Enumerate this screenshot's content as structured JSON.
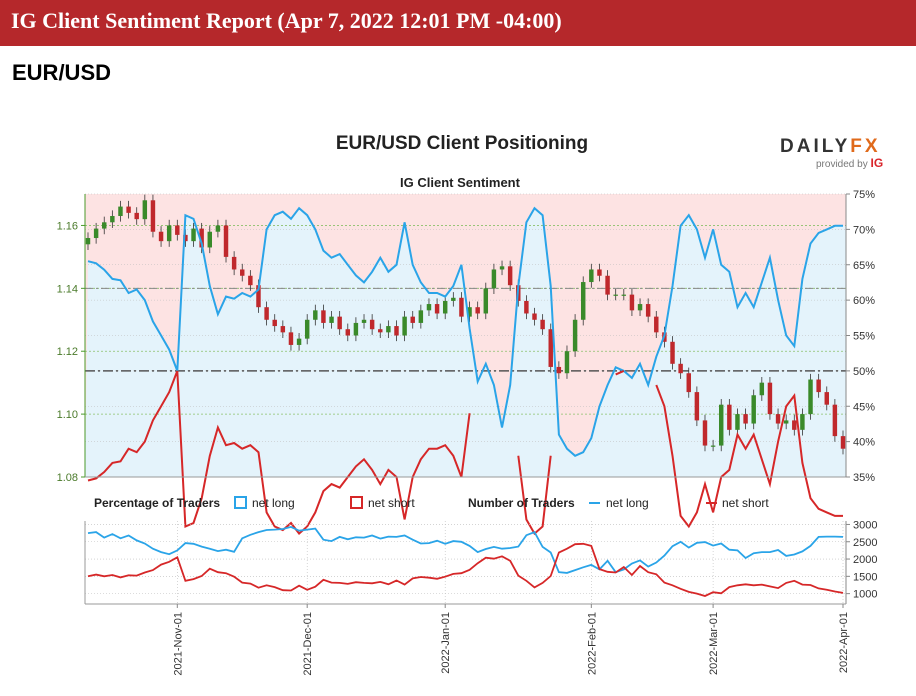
{
  "banner": {
    "title": "IG Client Sentiment Report (Apr 7, 2022 12:01 PM -04:00)"
  },
  "pair_label": "EUR/USD",
  "brand": {
    "name_main": "DAILY",
    "name_fx": "FX",
    "provided_by": "provided by",
    "provider": "IG"
  },
  "colors": {
    "long": "#2aa4e8",
    "short": "#d62728",
    "bull": "#3a8a2a",
    "bear": "#c0282c",
    "long_area": "#e4f3fb",
    "short_area": "#fde3e3"
  },
  "legend": {
    "pct_heading": "Percentage of Traders",
    "pct_long": "net long",
    "pct_short": "net short",
    "num_heading": "Number of Traders",
    "num_long": "net long",
    "num_short": "net short"
  },
  "chart_data": [
    {
      "type": "candlestick+line",
      "title": "EUR/USD Client Positioning",
      "subtitle": "IG Client Sentiment",
      "ylim_price": [
        1.08,
        1.17
      ],
      "yticks_price": [
        "1.08",
        "1.10",
        "1.12",
        "1.14",
        "1.16"
      ],
      "ylim_pct": [
        35,
        75
      ],
      "yticks_pct": [
        "35%",
        "40%",
        "45%",
        "50%",
        "55%",
        "60%",
        "65%",
        "70%",
        "75%"
      ],
      "price_close": [
        1.156,
        1.159,
        1.161,
        1.163,
        1.166,
        1.164,
        1.162,
        1.168,
        1.158,
        1.155,
        1.16,
        1.157,
        1.155,
        1.159,
        1.153,
        1.158,
        1.16,
        1.15,
        1.146,
        1.144,
        1.141,
        1.134,
        1.13,
        1.128,
        1.126,
        1.122,
        1.124,
        1.13,
        1.133,
        1.129,
        1.131,
        1.127,
        1.125,
        1.129,
        1.13,
        1.127,
        1.126,
        1.128,
        1.125,
        1.131,
        1.129,
        1.133,
        1.135,
        1.132,
        1.136,
        1.137,
        1.131,
        1.134,
        1.132,
        1.14,
        1.146,
        1.147,
        1.141,
        1.136,
        1.132,
        1.13,
        1.127,
        1.115,
        1.113,
        1.12,
        1.13,
        1.142,
        1.146,
        1.144,
        1.138,
        1.138,
        1.138,
        1.133,
        1.135,
        1.131,
        1.126,
        1.123,
        1.116,
        1.113,
        1.107,
        1.098,
        1.09,
        1.09,
        1.103,
        1.095,
        1.1,
        1.097,
        1.106,
        1.11,
        1.1,
        1.097,
        1.098,
        1.095,
        1.1,
        1.111,
        1.107,
        1.103,
        1.093,
        1.089
      ],
      "pct_long": [
        65.5,
        65.2,
        64.3,
        63.0,
        62.8,
        61.0,
        61.5,
        60.0,
        57.0,
        55.0,
        53.0,
        50.0,
        72.0,
        71.5,
        68.0,
        62.0,
        58.0,
        60.5,
        60.2,
        61.0,
        60.5,
        61.5,
        70.0,
        72.0,
        72.5,
        71.5,
        73.0,
        72.0,
        70.0,
        67.0,
        66.0,
        66.5,
        65.0,
        63.5,
        62.5,
        64.0,
        66.0,
        64.0,
        65.0,
        71.0,
        65.0,
        62.5,
        61.0,
        61.0,
        60.5,
        62.0,
        65.0,
        56.0,
        48.5,
        51.0,
        48.0,
        42.0,
        48.0,
        62.0,
        71.0,
        73.0,
        72.0,
        62.0,
        41.0,
        39.0,
        38.0,
        38.5,
        40.5,
        45.0,
        48.0,
        50.5,
        50.0,
        49.0,
        51.0,
        48.0,
        52.0,
        55.0,
        62.0,
        70.5,
        72.0,
        70.0,
        66.0,
        70.0,
        65.0,
        64.0,
        59.0,
        61.0,
        59.0,
        62.5,
        66.0,
        60.0,
        55.0,
        53.5,
        63.0,
        68.0,
        69.5,
        70.0,
        70.5,
        70.5
      ],
      "annotations": {
        "price_ref_dashed": 1.14,
        "pct_ref_dashed": 50
      }
    },
    {
      "type": "line",
      "ylim": [
        700,
        3100
      ],
      "yticks": [
        "1000",
        "1500",
        "2000",
        "2500",
        "3000"
      ],
      "x_tick_labels": [
        "2021-Nov-01",
        "2021-Dec-01",
        "2022-Jan-01",
        "2022-Feb-01",
        "2022-Mar-01",
        "2022-Apr-01"
      ],
      "net_long": [
        2750,
        2780,
        2620,
        2720,
        2600,
        2680,
        2540,
        2450,
        2300,
        2200,
        2140,
        2250,
        2460,
        2440,
        2360,
        2300,
        2230,
        2270,
        2210,
        2600,
        2700,
        2780,
        2840,
        2850,
        2870,
        2930,
        2820,
        2850,
        2880,
        2560,
        2520,
        2640,
        2570,
        2630,
        2620,
        2680,
        2590,
        2650,
        2640,
        2680,
        2560,
        2450,
        2460,
        2530,
        2440,
        2520,
        2500,
        2380,
        2200,
        2290,
        2350,
        2300,
        2320,
        2360,
        2690,
        2780,
        2350,
        2190,
        1620,
        1600,
        1680,
        1760,
        1830,
        1700,
        1950,
        1620,
        1700,
        1870,
        1960,
        1780,
        1900,
        2100,
        2370,
        2500,
        2330,
        2470,
        2490,
        2390,
        2450,
        2270,
        2250,
        2030,
        2170,
        2200,
        2200,
        2260,
        2090,
        2130,
        2220,
        2380,
        2640,
        2650,
        2650,
        2640
      ],
      "net_short": [
        1500,
        1550,
        1500,
        1540,
        1470,
        1530,
        1520,
        1610,
        1680,
        1840,
        1920,
        2050,
        1370,
        1420,
        1510,
        1720,
        1620,
        1590,
        1490,
        1320,
        1290,
        1170,
        1240,
        1190,
        1100,
        1090,
        1230,
        1110,
        1200,
        1400,
        1320,
        1310,
        1280,
        1330,
        1310,
        1300,
        1340,
        1270,
        1380,
        1260,
        1440,
        1480,
        1460,
        1430,
        1490,
        1570,
        1590,
        1690,
        1880,
        2040,
        2010,
        2080,
        1950,
        1520,
        1370,
        1180,
        1310,
        1510,
        2190,
        2300,
        2430,
        2440,
        2380,
        1710,
        1630,
        1610,
        1770,
        1540,
        1800,
        1620,
        1560,
        1320,
        1240,
        1140,
        1050,
        1000,
        930,
        1040,
        1010,
        1190,
        1240,
        1270,
        1240,
        1260,
        1210,
        1160,
        1310,
        1370,
        1260,
        1250,
        1150,
        1110,
        1060,
        1020
      ]
    }
  ]
}
